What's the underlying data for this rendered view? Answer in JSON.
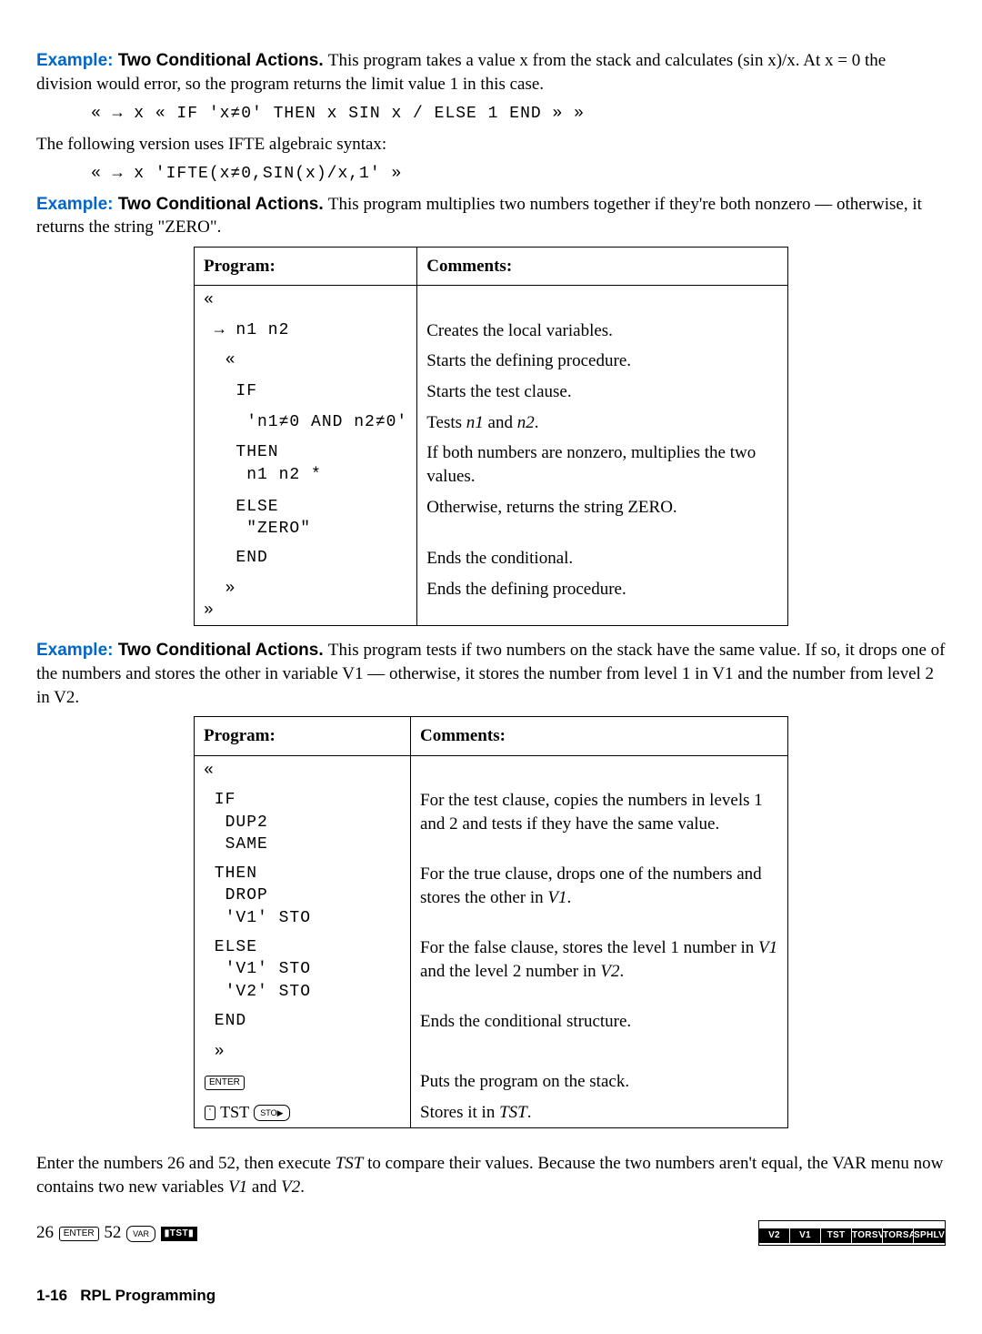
{
  "example1": {
    "label": "Example:",
    "title": "Two Conditional Actions.",
    "para": "This program takes a value x from the stack and calculates (sin x)/x. At x = 0 the division would error, so the program returns the limit value 1 in this case.",
    "code": "« → x « IF 'x≠0' THEN x SIN x / ELSE 1 END » »",
    "para2": "The following version uses IFTE algebraic syntax:",
    "code2": "« → x 'IFTE(x≠0,SIN(x)/x,1' »"
  },
  "example2": {
    "label": "Example:",
    "title": "Two Conditional Actions.",
    "para": "This program multiplies two numbers together if they're both nonzero — otherwise, it returns the string \"ZERO\".",
    "table_hdr": {
      "program": "Program:",
      "comments": "Comments:"
    },
    "rows": [
      {
        "prog": "«",
        "cmt": ""
      },
      {
        "prog": " → n1 n2",
        "cmt": "Creates the local variables."
      },
      {
        "prog": "  «",
        "cmt": "Starts the defining procedure."
      },
      {
        "prog": "   IF",
        "cmt": "Starts the test clause."
      },
      {
        "prog": "    'n1≠0 AND n2≠0'",
        "cmt_pre": "Tests ",
        "cmt_i1": "n1",
        "cmt_mid": " and ",
        "cmt_i2": "n2",
        "cmt_post": "."
      },
      {
        "prog": "   THEN\n    n1 n2 *",
        "cmt": "If both numbers are nonzero, multiplies the two values."
      },
      {
        "prog": "   ELSE\n    \"ZERO\"",
        "cmt": "Otherwise, returns the string ZERO."
      },
      {
        "prog": "   END",
        "cmt": "Ends the conditional."
      },
      {
        "prog": "  »\n»",
        "cmt": "Ends the defining procedure."
      }
    ]
  },
  "example3": {
    "label": "Example:",
    "title": "Two Conditional Actions.",
    "para": "This program tests if two numbers on the stack have the same value. If so, it drops one of the numbers and stores the other in variable V1 — otherwise, it stores the number from level 1 in V1 and the number from level 2 in V2.",
    "table_hdr": {
      "program": "Program:",
      "comments": "Comments:"
    },
    "rows": [
      {
        "prog": "«",
        "cmt": ""
      },
      {
        "prog": " IF\n  DUP2\n  SAME",
        "cmt": "For the test clause, copies the numbers in levels 1 and 2 and tests if they have the same value."
      },
      {
        "prog": " THEN\n  DROP\n  'V1' STO",
        "cmt_pre": "For the true clause, drops one of the numbers and stores the other in ",
        "cmt_i1": "V1",
        "cmt_post": "."
      },
      {
        "prog": " ELSE\n  'V1' STO\n  'V2' STO",
        "cmt_pre": "For the false clause, stores the level 1 number in ",
        "cmt_i1": "V1",
        "cmt_mid": " and the level 2 number in ",
        "cmt_i2": "V2",
        "cmt_post": "."
      },
      {
        "prog": " END",
        "cmt": "Ends the conditional structure."
      },
      {
        "prog": " »",
        "cmt": ""
      }
    ],
    "keyrows": [
      {
        "key": "ENTER",
        "cmt": "Puts the program on the stack."
      },
      {
        "plainkey": "'",
        "txt": " TST ",
        "key2": "STO▶",
        "cmt_pre": "Stores it in ",
        "cmt_i1": "TST",
        "cmt_post": "."
      }
    ]
  },
  "trailing": {
    "para_pre": "Enter the numbers 26 and 52, then execute ",
    "para_i1": "TST",
    "para_mid": " to compare their values. Because the two numbers aren't equal, the VAR menu now contains two new variables ",
    "para_i2": "V1",
    "para_mid2": " and ",
    "para_i3": "V2",
    "para_post": ".",
    "left": {
      "n1": "26",
      "key1": "ENTER",
      "n2": " 52 ",
      "key2": "VAR",
      "soft": "▮TST▮"
    },
    "right_cells": [
      "V2",
      "V1",
      "TST",
      "TORSV",
      "TORSA",
      "SPHLV"
    ]
  },
  "footer": {
    "page": "1-16",
    "title": "RPL Programming"
  },
  "colors": {
    "link": "#0066cc",
    "text": "#000000",
    "bg": "#ffffff"
  },
  "fonts": {
    "body": "Garamond serif",
    "code": "Courier monospace",
    "heading": "Arial sans-serif"
  }
}
